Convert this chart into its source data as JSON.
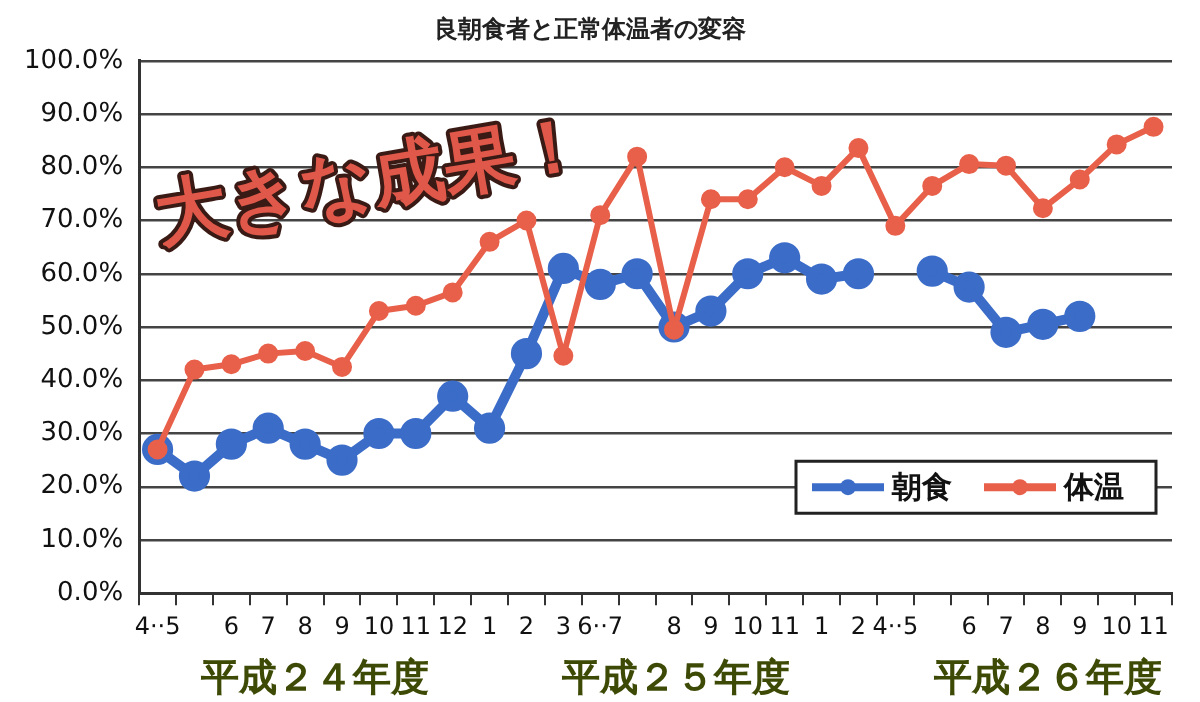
{
  "chart_data": {
    "type": "line",
    "title": "良朝食者と正常体温者の変容",
    "categories": [
      "4··5",
      null,
      "6",
      "7",
      "8",
      "9",
      "10",
      "11",
      "12",
      "1",
      "2",
      "3",
      "6··7",
      null,
      "8",
      "9",
      "10",
      "11",
      "1",
      "2",
      "4··5",
      null,
      "6",
      "7",
      "8",
      "9",
      "10",
      "11"
    ],
    "series": [
      {
        "name": "朝食",
        "color": "#3a6cc8",
        "values": [
          27,
          22,
          28,
          31,
          28,
          25,
          30,
          30,
          37,
          31,
          45,
          61,
          58,
          60,
          50,
          53,
          60,
          63,
          59,
          60,
          null,
          60.5,
          57.5,
          49,
          50.5,
          52,
          null,
          null
        ]
      },
      {
        "name": "体温",
        "color": "#e8604a",
        "values": [
          27,
          42,
          43,
          45,
          45.5,
          42.5,
          53,
          54,
          56.5,
          66,
          70,
          44.6,
          71,
          82,
          49.5,
          74,
          74,
          80,
          76.5,
          83.6,
          69,
          76.5,
          80.6,
          80.3,
          72.3,
          77.7,
          84.3,
          87.6
        ]
      }
    ],
    "ylim": [
      0,
      100
    ],
    "yticks": [
      {
        "value": 0,
        "label": "0.0%"
      },
      {
        "value": 10,
        "label": "10.0%"
      },
      {
        "value": 20,
        "label": "20.0%"
      },
      {
        "value": 30,
        "label": "30.0%"
      },
      {
        "value": 40,
        "label": "40.0%"
      },
      {
        "value": 50,
        "label": "50.0%"
      },
      {
        "value": 60,
        "label": "60.0%"
      },
      {
        "value": 70,
        "label": "70.0%"
      },
      {
        "value": 80,
        "label": "80.0%"
      },
      {
        "value": 90,
        "label": "90.0%"
      },
      {
        "value": 100,
        "label": "100.0%"
      }
    ],
    "grid": "y",
    "legend": "bottom right",
    "marker": "circle",
    "line_style": "solid",
    "annotations": [
      "大きな成果！",
      "平成２４年度",
      "平成２５年度",
      "平成２６年度"
    ]
  }
}
